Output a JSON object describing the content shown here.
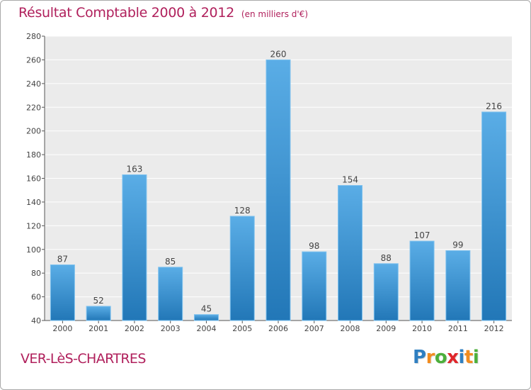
{
  "header": {
    "title": "Résultat Comptable 2000 à 2012",
    "subtitle": "(en milliers d'€)"
  },
  "footer": {
    "commune": "VER-LèS-CHARTRES",
    "brand": [
      "P",
      "r",
      "o",
      "x",
      "i",
      "t",
      "i"
    ],
    "brand_colors": [
      "#2f7fc1",
      "#f28c1e",
      "#4caf3b",
      "#e0262b",
      "#2f7fc1",
      "#f28c1e",
      "#4caf3b"
    ]
  },
  "chart_data": {
    "type": "bar",
    "title": "Résultat Comptable 2000 à 2012",
    "subtitle": "(en milliers d'€)",
    "categories": [
      "2000",
      "2001",
      "2002",
      "2003",
      "2004",
      "2005",
      "2006",
      "2007",
      "2008",
      "2009",
      "2010",
      "2011",
      "2012"
    ],
    "values": [
      87,
      52,
      163,
      85,
      45,
      128,
      260,
      98,
      154,
      88,
      107,
      99,
      216
    ],
    "value_labels": [
      "87",
      "52",
      "163",
      "85",
      "45",
      "128",
      "260",
      "98",
      "154",
      "88",
      "107",
      "99",
      "216"
    ],
    "ylim": [
      40,
      280
    ],
    "yticks": [
      40,
      60,
      80,
      100,
      120,
      140,
      160,
      180,
      200,
      220,
      240,
      260,
      280
    ],
    "ytick_labels": [
      "40",
      "60",
      "80",
      "100",
      "120",
      "140",
      "160",
      "180",
      "200",
      "220",
      "240",
      "260",
      "280"
    ],
    "xlabel": "",
    "ylabel": "",
    "grid": "horizontal",
    "colors": {
      "bar_light": "#5aade6",
      "bar_dark": "#2277b7",
      "plot_bg": "#ebebeb"
    }
  }
}
